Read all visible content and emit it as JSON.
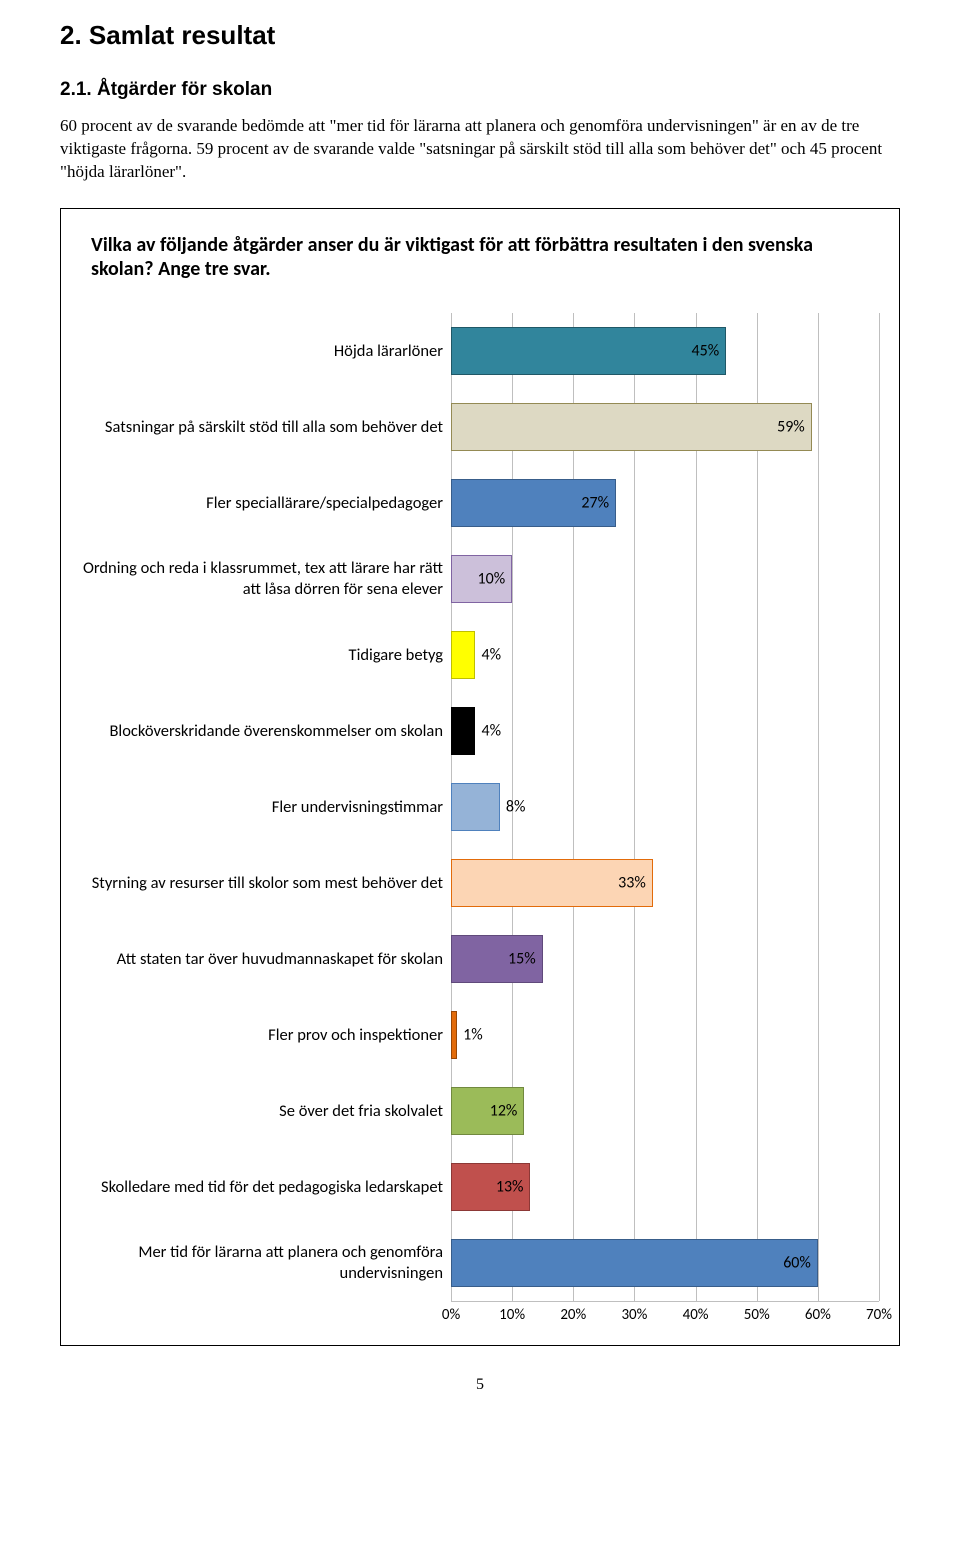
{
  "section": {
    "heading1": "2. Samlat resultat",
    "heading2": "2.1. Åtgärder för skolan",
    "body": "60 procent av de svarande bedömde att \"mer tid för lärarna att planera och genomföra undervisningen\" är en av de tre viktigaste frågorna. 59 procent av de svarande valde \"satsningar på särskilt stöd till alla som behöver det\" och 45 procent \"höjda lärarlöner\"."
  },
  "chart": {
    "title": "Vilka av följande åtgärder anser du är viktigast för att förbättra resultaten i den svenska skolan? Ange tre svar.",
    "type": "bar",
    "x_max": 70,
    "x_tick_step": 10,
    "x_ticks": [
      "0%",
      "10%",
      "20%",
      "30%",
      "40%",
      "50%",
      "60%",
      "70%"
    ],
    "grid_color": "#bfbfbf",
    "background_color": "#ffffff",
    "label_fontsize": 16.5,
    "value_fontsize": 16,
    "bars": [
      {
        "label": "Höjda lärarlöner",
        "value": 45,
        "display": "45%",
        "fill": "#31859c",
        "border": "#205867",
        "value_pos": "inside"
      },
      {
        "label": "Satsningar på särskilt stöd till alla som behöver det",
        "value": 59,
        "display": "59%",
        "fill": "#ddd9c3",
        "border": "#948a54",
        "value_pos": "inside"
      },
      {
        "label": "Fler speciallärare/specialpedagoger",
        "value": 27,
        "display": "27%",
        "fill": "#4f81bd",
        "border": "#385d8a",
        "value_pos": "inside"
      },
      {
        "label": "Ordning och reda i klassrummet, tex att lärare har rätt att låsa dörren för sena elever",
        "value": 10,
        "display": "10%",
        "fill": "#ccc0da",
        "border": "#8064a2",
        "value_pos": "inside"
      },
      {
        "label": "Tidigare betyg",
        "value": 4,
        "display": "4%",
        "fill": "#ffff00",
        "border": "#bfbf00",
        "value_pos": "outside"
      },
      {
        "label": "Blocköverskridande överenskommelser om skolan",
        "value": 4,
        "display": "4%",
        "fill": "#000000",
        "border": "#000000",
        "value_pos": "outside"
      },
      {
        "label": "Fler undervisningstimmar",
        "value": 8,
        "display": "8%",
        "fill": "#95b3d7",
        "border": "#4f81bd",
        "value_pos": "outside"
      },
      {
        "label": "Styrning av resurser till skolor som mest behöver det",
        "value": 33,
        "display": "33%",
        "fill": "#fcd5b4",
        "border": "#e26b0a",
        "value_pos": "inside"
      },
      {
        "label": "Att staten tar över huvudmannaskapet för skolan",
        "value": 15,
        "display": "15%",
        "fill": "#8064a2",
        "border": "#604a7b",
        "value_pos": "inside"
      },
      {
        "label": "Fler prov och inspektioner",
        "value": 1,
        "display": "1%",
        "fill": "#e26b0a",
        "border": "#974706",
        "value_pos": "outside"
      },
      {
        "label": "Se över det fria skolvalet",
        "value": 12,
        "display": "12%",
        "fill": "#9bbb59",
        "border": "#71893f",
        "value_pos": "inside"
      },
      {
        "label": "Skolledare med tid för det pedagogiska ledarskapet",
        "value": 13,
        "display": "13%",
        "fill": "#c0504d",
        "border": "#8c3836",
        "value_pos": "inside"
      },
      {
        "label": "Mer tid för lärarna att planera och genomföra undervisningen",
        "value": 60,
        "display": "60%",
        "fill": "#4f81bd",
        "border": "#385d8a",
        "value_pos": "inside"
      }
    ]
  },
  "page_number": "5"
}
